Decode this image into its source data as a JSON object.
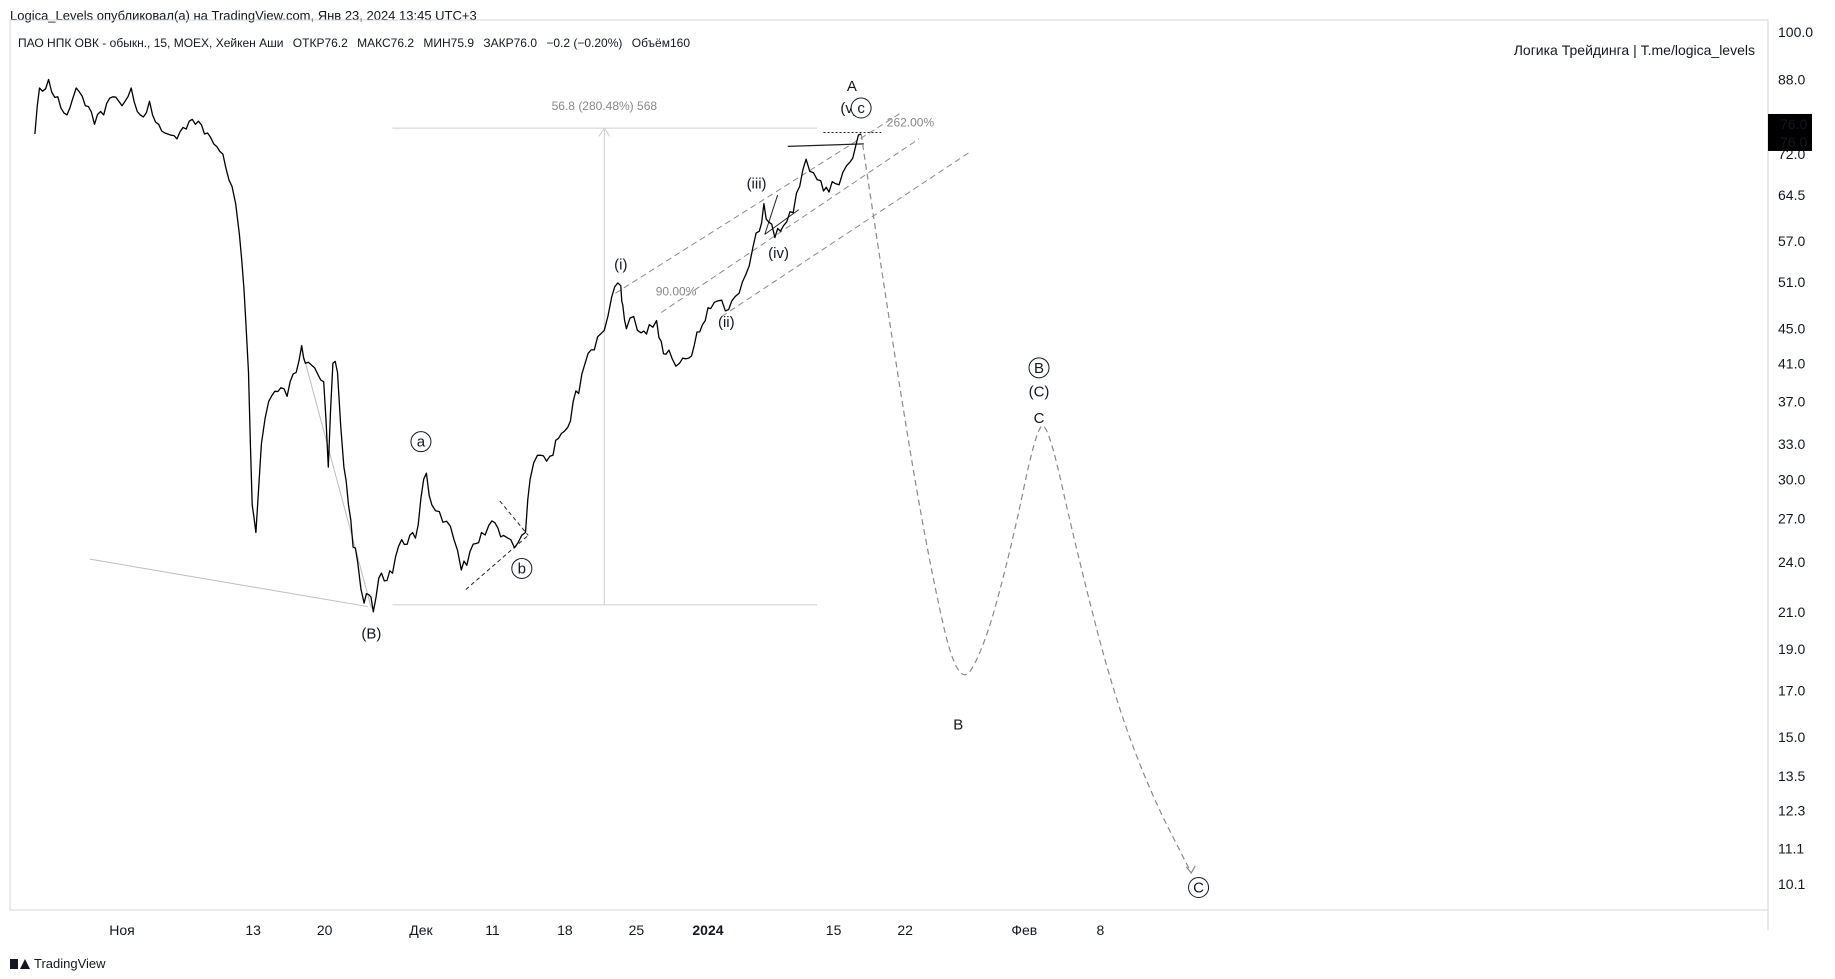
{
  "header": {
    "text": "Logica_Levels опубликовал(а) на TradingView.com, Янв 23, 2024 13:45 UTC+3"
  },
  "legend": {
    "symbol": "ПАО НПК ОВК - обыкн., 15, MOEX, Хейкен Аши",
    "open": "ОТКР76.2",
    "high": "МАКС76.2",
    "low": "МИН75.9",
    "close": "ЗАКР76.0",
    "change": "−0.2 (−0.20%)",
    "volume": "Объём160"
  },
  "author": {
    "text": "Логика Трейдинга | T.me/logica_levels"
  },
  "brand": {
    "text": "TradingView"
  },
  "colors": {
    "price": "#000000",
    "guide": "#8a8a8a",
    "tag_bg": "#000000",
    "tag_fg": "#ffffff"
  },
  "chart_data": {
    "type": "line",
    "scale": "log",
    "ylim": [
      9.8,
      100
    ],
    "y_ticks": [
      "100.0",
      "88.0",
      "72.0",
      "64.5",
      "57.0",
      "51.0",
      "45.0",
      "41.0",
      "37.0",
      "33.0",
      "30.0",
      "27.0",
      "24.0",
      "21.0",
      "19.0",
      "17.0",
      "15.0",
      "13.5",
      "12.3",
      "11.1",
      "10.1"
    ],
    "price_tags": [
      "76.0",
      "76.0"
    ],
    "x_ticks": [
      {
        "label": "Ноя",
        "x": 0.0,
        "bold": false
      },
      {
        "label": "13",
        "x": 14.3,
        "bold": false
      },
      {
        "label": "20",
        "x": 22.1,
        "bold": false
      },
      {
        "label": "Дек",
        "x": 32.6,
        "bold": false
      },
      {
        "label": "11",
        "x": 40.4,
        "bold": false
      },
      {
        "label": "18",
        "x": 48.3,
        "bold": false
      },
      {
        "label": "25",
        "x": 56.1,
        "bold": false
      },
      {
        "label": "2024",
        "x": 63.9,
        "bold": true
      },
      {
        "label": "15",
        "x": 77.6,
        "bold": false
      },
      {
        "label": "22",
        "x": 85.4,
        "bold": false
      },
      {
        "label": "Фев",
        "x": 98.4,
        "bold": false
      },
      {
        "label": "8",
        "x": 106.7,
        "bold": false
      }
    ],
    "series": [
      {
        "values": [
          [
            -9.5,
            76
          ],
          [
            -9,
            86
          ],
          [
            -8,
            88
          ],
          [
            -7,
            84
          ],
          [
            -6,
            80
          ],
          [
            -5,
            86
          ],
          [
            -4,
            82
          ],
          [
            -3,
            78
          ],
          [
            -2,
            80
          ],
          [
            -1,
            84
          ],
          [
            0,
            82
          ],
          [
            1,
            86
          ],
          [
            2,
            80
          ],
          [
            3,
            83
          ],
          [
            4,
            78
          ],
          [
            5,
            76
          ],
          [
            6,
            75
          ],
          [
            7,
            77
          ],
          [
            8,
            78
          ],
          [
            9,
            76
          ],
          [
            10,
            74
          ],
          [
            11,
            72
          ],
          [
            12,
            66
          ],
          [
            12.8,
            58
          ],
          [
            13.3,
            50
          ],
          [
            13.8,
            40
          ],
          [
            14.2,
            28
          ],
          [
            14.6,
            26
          ],
          [
            15.2,
            33
          ],
          [
            16,
            37
          ],
          [
            17,
            38
          ],
          [
            18,
            37.5
          ],
          [
            19,
            40
          ],
          [
            19.6,
            43
          ],
          [
            20,
            41
          ],
          [
            21,
            40.5
          ],
          [
            22,
            39
          ],
          [
            22.5,
            31
          ],
          [
            23,
            41
          ],
          [
            23.5,
            40
          ],
          [
            24.2,
            31
          ],
          [
            24.7,
            28
          ],
          [
            25.2,
            25
          ],
          [
            25.7,
            24
          ],
          [
            26.4,
            21.5
          ],
          [
            26.9,
            22
          ],
          [
            27.4,
            21
          ],
          [
            28,
            23
          ],
          [
            29.5,
            23.3
          ],
          [
            30.5,
            25.5
          ],
          [
            32,
            25.6
          ],
          [
            32.6,
            28.5
          ],
          [
            33.2,
            30.5
          ],
          [
            33.8,
            28
          ],
          [
            34.6,
            27.5
          ],
          [
            35.4,
            26.8
          ],
          [
            36.2,
            25.5
          ],
          [
            37,
            23.5
          ],
          [
            37.6,
            23.8
          ],
          [
            38.3,
            25.2
          ],
          [
            39.2,
            26
          ],
          [
            40,
            26.5
          ],
          [
            41,
            26.3
          ],
          [
            41.6,
            25.8
          ],
          [
            42.4,
            25.5
          ],
          [
            43.2,
            25.3
          ],
          [
            44,
            26
          ],
          [
            44.5,
            30
          ],
          [
            45.3,
            32
          ],
          [
            46.3,
            31.5
          ],
          [
            47,
            32
          ],
          [
            47.6,
            33.5
          ],
          [
            48.6,
            34.5
          ],
          [
            49.2,
            37
          ],
          [
            49.8,
            37.8
          ],
          [
            50.5,
            41
          ],
          [
            51.5,
            42.5
          ],
          [
            52.6,
            44.8
          ],
          [
            53.4,
            49
          ],
          [
            54.4,
            50.5
          ],
          [
            54.6,
            48
          ],
          [
            55,
            45
          ],
          [
            55.8,
            46.5
          ],
          [
            56.6,
            44.5
          ],
          [
            57.5,
            45.5
          ],
          [
            58.3,
            46
          ],
          [
            58.8,
            43.5
          ],
          [
            59.3,
            42
          ],
          [
            60,
            41.5
          ],
          [
            60.8,
            41
          ],
          [
            61.5,
            41.5
          ],
          [
            62.4,
            43
          ],
          [
            63.3,
            45.5
          ],
          [
            64.2,
            47.5
          ],
          [
            65,
            48.5
          ],
          [
            65.8,
            47.2
          ],
          [
            66.5,
            48.5
          ],
          [
            67.3,
            49.5
          ],
          [
            68,
            52
          ],
          [
            68.8,
            56
          ],
          [
            69.5,
            58.5
          ],
          [
            70,
            63
          ],
          [
            70.5,
            60
          ],
          [
            71.2,
            57.5
          ],
          [
            71.8,
            58.5
          ],
          [
            72.5,
            60
          ],
          [
            73.2,
            61.5
          ],
          [
            73.9,
            66
          ],
          [
            74.6,
            71
          ],
          [
            75.4,
            68.5
          ],
          [
            76.2,
            67
          ],
          [
            77.1,
            65
          ],
          [
            77.8,
            66.5
          ],
          [
            78.6,
            68.5
          ],
          [
            79.4,
            70.5
          ],
          [
            80,
            73.5
          ],
          [
            80.6,
            76
          ]
        ]
      }
    ],
    "annotations": {
      "wave_labels": [
        {
          "text": "(B)",
          "x": 27.2,
          "y": 19.8,
          "style": "plain"
        },
        {
          "text": "a",
          "x": 32.6,
          "y": 33.2,
          "style": "circle"
        },
        {
          "text": "b",
          "x": 43.6,
          "y": 23.6,
          "style": "circle"
        },
        {
          "text": "(i)",
          "x": 54.4,
          "y": 53.5,
          "style": "plain"
        },
        {
          "text": "(ii)",
          "x": 65.9,
          "y": 45.8,
          "style": "plain"
        },
        {
          "text": "(iii)",
          "x": 69.2,
          "y": 66.5,
          "style": "plain"
        },
        {
          "text": "(iv)",
          "x": 71.6,
          "y": 55.2,
          "style": "plain"
        },
        {
          "text": "(v)",
          "x": 79.3,
          "y": 81.5,
          "style": "plain"
        },
        {
          "text": "c",
          "x": 80.6,
          "y": 81.5,
          "style": "circle"
        },
        {
          "text": "A",
          "x": 79.6,
          "y": 86.5,
          "style": "plain"
        },
        {
          "text": "B",
          "x": 91.2,
          "y": 15.5,
          "style": "plain"
        },
        {
          "text": "B",
          "x": 100.0,
          "y": 40.5,
          "style": "circle"
        },
        {
          "text": "(C)",
          "x": 100.0,
          "y": 38.0,
          "style": "plain"
        },
        {
          "text": "C",
          "x": 100.0,
          "y": 35.4,
          "style": "plain"
        },
        {
          "text": "C",
          "x": 117.4,
          "y": 10.0,
          "style": "circle"
        }
      ],
      "measure_text": "56.8 (280.48%) 568",
      "fib_projection": "262.00%",
      "channel_retrace": "90.00%",
      "projected_path": [
        [
          80.6,
          76
        ],
        [
          84.5,
          40
        ],
        [
          88,
          24
        ],
        [
          91.2,
          17
        ],
        [
          94,
          19
        ],
        [
          97,
          25
        ],
        [
          99.6,
          34
        ],
        [
          100.9,
          35.2
        ],
        [
          104,
          25
        ],
        [
          108,
          17
        ],
        [
          112,
          13
        ],
        [
          116.6,
          10.4
        ]
      ]
    }
  }
}
